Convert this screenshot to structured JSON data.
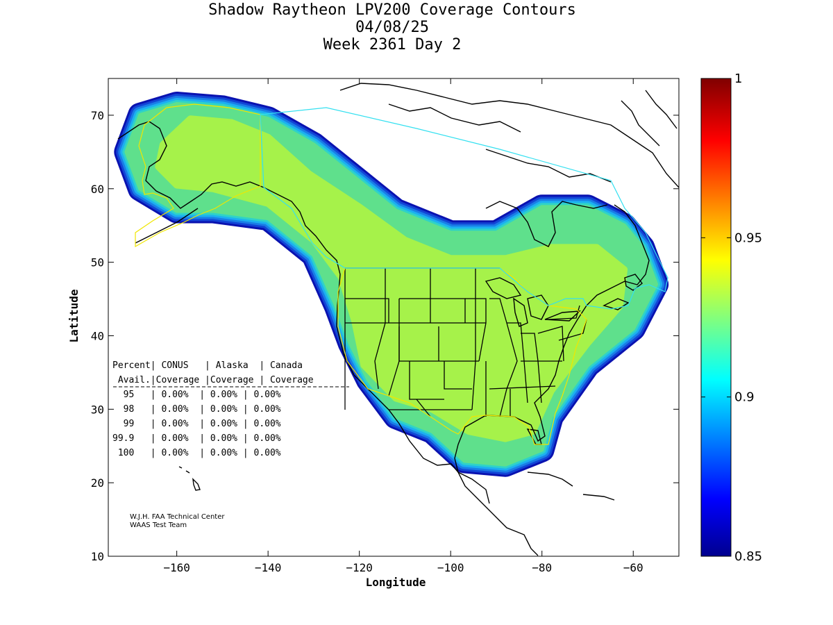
{
  "title": {
    "line1": "Shadow Raytheon LPV200 Coverage Contours",
    "line2": "04/08/25",
    "line3": "Week 2361 Day 2"
  },
  "axes": {
    "xlabel": "Longitude",
    "ylabel": "Latitude",
    "x_range": [
      -175,
      -50
    ],
    "y_range": [
      10,
      75
    ],
    "x_ticks": [
      -160,
      -140,
      -120,
      -100,
      -80,
      -60
    ],
    "y_ticks": [
      10,
      20,
      30,
      40,
      50,
      60,
      70
    ],
    "x_tick_labels": [
      "−160",
      "−140",
      "−120",
      "−100",
      "−80",
      "−60"
    ],
    "y_tick_labels": [
      "10",
      "20",
      "30",
      "40",
      "50",
      "60",
      "70"
    ]
  },
  "colorbar": {
    "min": 0.85,
    "max": 1,
    "labels": [
      "1",
      "0.95",
      "0.9",
      "0.85"
    ],
    "label_values": [
      1,
      0.95,
      0.9,
      0.85
    ]
  },
  "coverage_table": {
    "header1": "Percent| CONUS   | Alaska  | Canada",
    "header2": " Avail.|Coverage |Coverage | Coverage",
    "rows": [
      "  95   | 0.00%  | 0.00% | 0.00%",
      "  98   | 0.00%  | 0.00% | 0.00%",
      "  99   | 0.00%  | 0.00% | 0.00%",
      "99.9   | 0.00%  | 0.00% | 0.00%",
      " 100   | 0.00%  | 0.00% | 0.00%"
    ]
  },
  "credit": {
    "line1": "W.J.H. FAA Technical Center",
    "line2": "WAAS Test Team"
  },
  "colors": {
    "coverage_core": "#a6f24a",
    "ring1": "#5fe08c",
    "ring2": "#2fd2c8",
    "ring3": "#1cb0f0",
    "ring4": "#1a7de6",
    "ring5": "#1244d6",
    "ring6": "#0a12b0",
    "service_volume_yellow": "#f0e600",
    "service_volume_cyan": "#33e0f0"
  },
  "chart_data": {
    "type": "heatmap",
    "title": "Shadow Raytheon LPV200 Coverage Contours",
    "subtitle": "04/08/25 Week 2361 Day 2",
    "xlabel": "Longitude",
    "ylabel": "Latitude",
    "xlim": [
      -175,
      -50
    ],
    "ylim": [
      10,
      75
    ],
    "colorbar_range": [
      0.85,
      1
    ],
    "coverage_region_lonlat": [
      [
        -168,
        70
      ],
      [
        -160,
        71.5
      ],
      [
        -150,
        71
      ],
      [
        -140,
        69.5
      ],
      [
        -130,
        66
      ],
      [
        -120,
        61
      ],
      [
        -112,
        57
      ],
      [
        -100,
        54
      ],
      [
        -90,
        54
      ],
      [
        -80,
        57.5
      ],
      [
        -70,
        57.5
      ],
      [
        -62,
        55
      ],
      [
        -58,
        52
      ],
      [
        -55,
        47
      ],
      [
        -60,
        41
      ],
      [
        -70,
        36
      ],
      [
        -78,
        29
      ],
      [
        -80,
        24.5
      ],
      [
        -88,
        22.5
      ],
      [
        -97,
        23
      ],
      [
        -104,
        27
      ],
      [
        -112,
        29
      ],
      [
        -118,
        34
      ],
      [
        -122,
        39
      ],
      [
        -125,
        44
      ],
      [
        -130,
        51
      ],
      [
        -140,
        56
      ],
      [
        -152,
        57
      ],
      [
        -160,
        57
      ],
      [
        -168,
        60
      ],
      [
        -171,
        65
      ]
    ],
    "core_region_lonlat": [
      [
        -163,
        66
      ],
      [
        -157,
        69.5
      ],
      [
        -148,
        69
      ],
      [
        -140,
        67
      ],
      [
        -131,
        62
      ],
      [
        -120,
        57.5
      ],
      [
        -110,
        53
      ],
      [
        -100,
        50.5
      ],
      [
        -88,
        50.5
      ],
      [
        -78,
        52
      ],
      [
        -68,
        52
      ],
      [
        -62,
        49
      ],
      [
        -63,
        44
      ],
      [
        -70,
        39
      ],
      [
        -78,
        32.5
      ],
      [
        -82,
        27
      ],
      [
        -88,
        26
      ],
      [
        -96,
        27
      ],
      [
        -104,
        30
      ],
      [
        -112,
        31.5
      ],
      [
        -119,
        36
      ],
      [
        -121,
        42
      ],
      [
        -124,
        48
      ],
      [
        -130,
        53
      ],
      [
        -140,
        58
      ],
      [
        -152,
        60
      ],
      [
        -160,
        60.5
      ],
      [
        -164,
        63
      ]
    ]
  }
}
